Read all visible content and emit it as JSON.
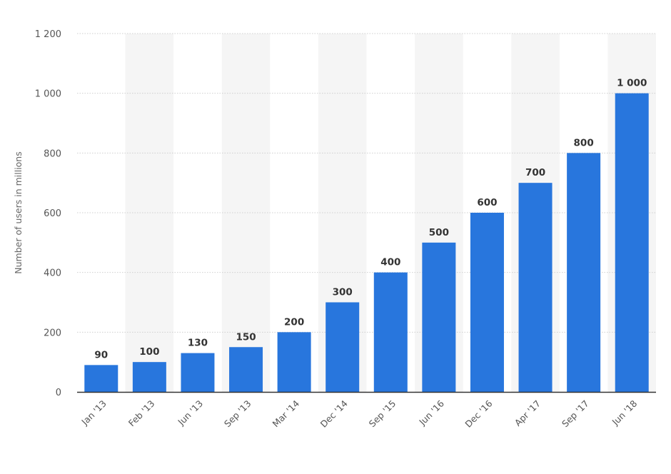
{
  "chart_data": {
    "type": "bar",
    "title": "",
    "xlabel": "",
    "ylabel": "Number of users in millions",
    "categories": [
      "Jan '13",
      "Feb '13",
      "Jun '13",
      "Sep '13",
      "Mar '14",
      "Dec '14",
      "Sep '15",
      "Jun '16",
      "Dec '16",
      "Apr '17",
      "Sep '17",
      "Jun '18"
    ],
    "values": [
      90,
      100,
      130,
      150,
      200,
      300,
      400,
      500,
      600,
      700,
      800,
      1000
    ],
    "value_labels": [
      "90",
      "100",
      "130",
      "150",
      "200",
      "300",
      "400",
      "500",
      "600",
      "700",
      "800",
      "1 000"
    ],
    "ylim": [
      0,
      1200
    ],
    "yticks": [
      0,
      200,
      400,
      600,
      800,
      1000,
      1200
    ],
    "ytick_labels": [
      "0",
      "200",
      "400",
      "600",
      "800",
      "1 000",
      "1 200"
    ],
    "grid": true,
    "legend": "none",
    "colors": {
      "bar": "#2876dd",
      "band": "#f5f5f5",
      "grid": "#cfcfcf",
      "axis": "#333333"
    }
  }
}
